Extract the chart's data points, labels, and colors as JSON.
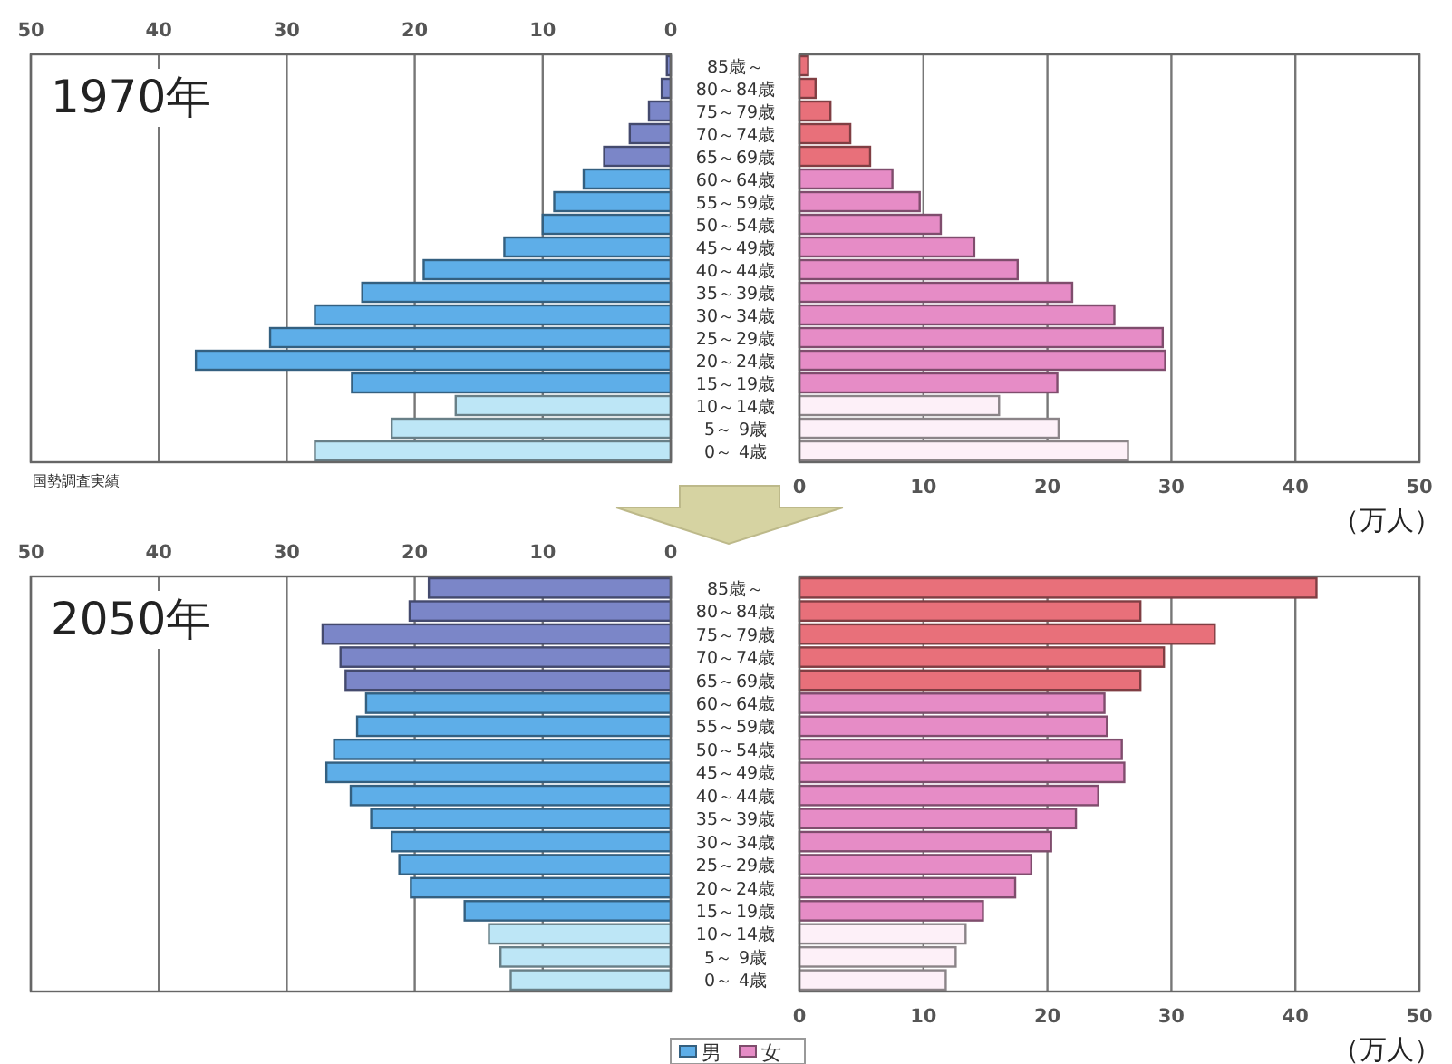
{
  "chart_data": [
    {
      "type": "bar",
      "orientation": "horizontal",
      "title": "1970年",
      "categories": [
        "85歳～",
        "80～84歳",
        "75～79歳",
        "70～74歳",
        "65～69歳",
        "60～64歳",
        "55～59歳",
        "50～54歳",
        "45～49歳",
        "40～44歳",
        "35～39歳",
        "30～34歳",
        "25～29歳",
        "20～24歳",
        "15～19歳",
        "10～14歳",
        "5～ 9歳",
        "0～ 4歳"
      ],
      "series": [
        {
          "axis": "x2",
          "colors": [
            "#7b86c8",
            "#7b86c8",
            "#7b86c8",
            "#7b86c8",
            "#7b86c8",
            "#5eaee8",
            "#5eaee8",
            "#5eaee8",
            "#5eaee8",
            "#5eaee8",
            "#5eaee8",
            "#5eaee8",
            "#5eaee8",
            "#5eaee8",
            "#5eaee8",
            "#bde6f6",
            "#bde6f6",
            "#bde6f6"
          ],
          "values": [
            0.3,
            0.7,
            1.7,
            3.2,
            5.2,
            6.8,
            9.1,
            10.0,
            13.0,
            19.3,
            24.1,
            27.8,
            31.3,
            37.1,
            24.9,
            16.8,
            21.8,
            27.8
          ]
        },
        {
          "colors": [
            "#e8707a",
            "#e8707a",
            "#e8707a",
            "#e8707a",
            "#e8707a",
            "#e68cc6",
            "#e68cc6",
            "#e68cc6",
            "#e68cc6",
            "#e68cc6",
            "#e68cc6",
            "#e68cc6",
            "#e68cc6",
            "#e68cc6",
            "#e68cc6",
            "#fdf0f8",
            "#fdf0f8",
            "#fdf0f8"
          ],
          "values": [
            0.7,
            1.3,
            2.5,
            4.1,
            5.7,
            7.5,
            9.7,
            11.4,
            14.1,
            17.6,
            22.0,
            25.4,
            29.3,
            29.5,
            20.8,
            16.1,
            20.9,
            26.5
          ]
        }
      ],
      "xlim": [
        0,
        50
      ],
      "xticks": [
        0,
        10,
        20,
        30,
        40,
        50
      ],
      "x2lim": [
        50,
        0
      ],
      "x2ticks": [
        50,
        40,
        30,
        20,
        10,
        0
      ],
      "grid": "x",
      "annotations": [
        "国勢調査実績",
        "（万人）"
      ]
    },
    {
      "type": "bar",
      "orientation": "horizontal",
      "title": "2050年",
      "categories": [
        "85歳～",
        "80～84歳",
        "75～79歳",
        "70～74歳",
        "65～69歳",
        "60～64歳",
        "55～59歳",
        "50～54歳",
        "45～49歳",
        "40～44歳",
        "35～39歳",
        "30～34歳",
        "25～29歳",
        "20～24歳",
        "15～19歳",
        "10～14歳",
        "5～ 9歳",
        "0～ 4歳"
      ],
      "series": [
        {
          "name": "男",
          "axis": "x2",
          "colors": [
            "#7b86c8",
            "#7b86c8",
            "#7b86c8",
            "#7b86c8",
            "#7b86c8",
            "#5eaee8",
            "#5eaee8",
            "#5eaee8",
            "#5eaee8",
            "#5eaee8",
            "#5eaee8",
            "#5eaee8",
            "#5eaee8",
            "#5eaee8",
            "#5eaee8",
            "#bde6f6",
            "#bde6f6",
            "#bde6f6"
          ],
          "values": [
            18.9,
            20.4,
            27.2,
            25.8,
            25.4,
            23.8,
            24.5,
            26.3,
            26.9,
            25.0,
            23.4,
            21.8,
            21.2,
            20.3,
            16.1,
            14.2,
            13.3,
            12.5
          ]
        },
        {
          "name": "女",
          "colors": [
            "#e8707a",
            "#e8707a",
            "#e8707a",
            "#e8707a",
            "#e8707a",
            "#e68cc6",
            "#e68cc6",
            "#e68cc6",
            "#e68cc6",
            "#e68cc6",
            "#e68cc6",
            "#e68cc6",
            "#e68cc6",
            "#e68cc6",
            "#e68cc6",
            "#fdf0f8",
            "#fdf0f8",
            "#fdf0f8"
          ],
          "values": [
            41.7,
            27.5,
            33.5,
            29.4,
            27.5,
            24.6,
            24.8,
            26.0,
            26.2,
            24.1,
            22.3,
            20.3,
            18.7,
            17.4,
            14.8,
            13.4,
            12.6,
            11.8
          ]
        }
      ],
      "xlim": [
        0,
        50
      ],
      "xticks": [
        0,
        10,
        20,
        30,
        40,
        50
      ],
      "x2lim": [
        50,
        0
      ],
      "x2ticks": [
        50,
        40,
        30,
        20,
        10,
        0
      ],
      "grid": "x",
      "legend": "bottom",
      "annotations": [
        "（万人）"
      ]
    }
  ]
}
